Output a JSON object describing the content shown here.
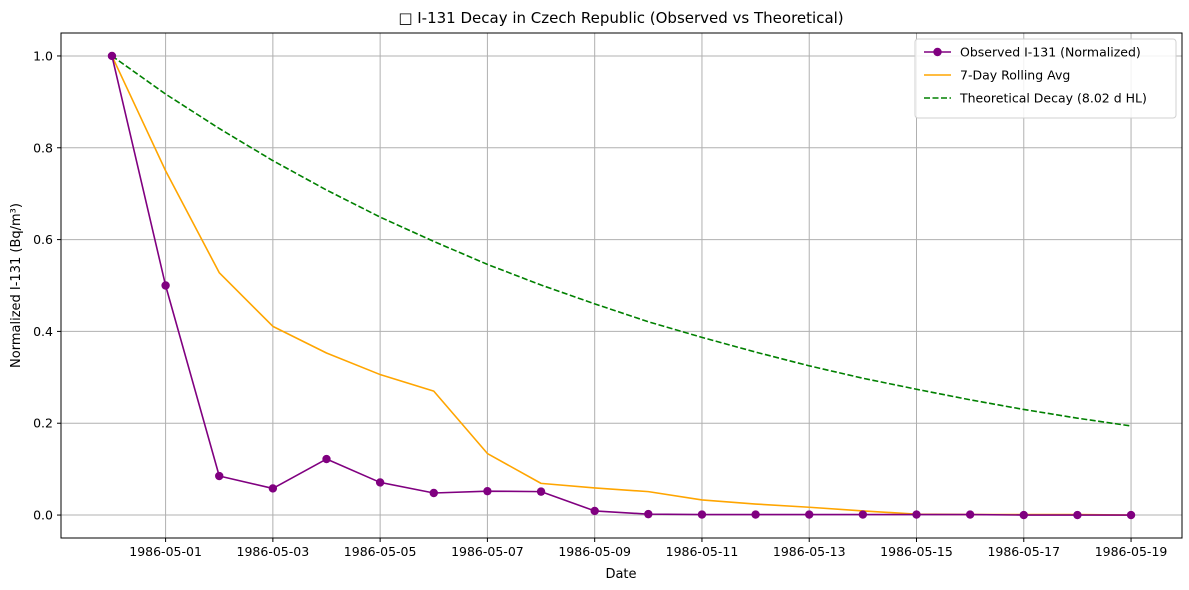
{
  "chart_data": {
    "type": "line",
    "title": "□ I-131 Decay in Czech Republic (Observed vs Theoretical)",
    "xlabel": "Date",
    "ylabel": "Normalized I-131 (Bq/m³)",
    "grid": true,
    "legend_position": "top-right",
    "xlim": [
      "1986-04-29",
      "1986-05-19"
    ],
    "ylim": [
      -0.05,
      1.05
    ],
    "x_ticks": [
      "1986-05-01",
      "1986-05-03",
      "1986-05-05",
      "1986-05-07",
      "1986-05-09",
      "1986-05-11",
      "1986-05-13",
      "1986-05-15",
      "1986-05-17",
      "1986-05-19"
    ],
    "y_ticks": [
      "0.0",
      "0.2",
      "0.4",
      "0.6",
      "0.8",
      "1.0"
    ],
    "x": [
      "1986-04-30",
      "1986-05-01",
      "1986-05-02",
      "1986-05-03",
      "1986-05-04",
      "1986-05-05",
      "1986-05-06",
      "1986-05-07",
      "1986-05-08",
      "1986-05-09",
      "1986-05-10",
      "1986-05-11",
      "1986-05-12",
      "1986-05-13",
      "1986-05-14",
      "1986-05-15",
      "1986-05-16",
      "1986-05-17",
      "1986-05-18",
      "1986-05-19"
    ],
    "series": [
      {
        "name": "Observed I-131 (Normalized)",
        "color": "#800080",
        "style": "solid-marker",
        "values": [
          1.0,
          0.5,
          0.085,
          0.058,
          0.122,
          0.071,
          0.048,
          0.052,
          0.051,
          0.009,
          0.002,
          0.001,
          0.001,
          0.001,
          0.001,
          0.001,
          0.001,
          0.0,
          0.0,
          0.0
        ]
      },
      {
        "name": "7-Day Rolling Avg",
        "color": "#ffa500",
        "style": "solid",
        "values": [
          1.0,
          0.75,
          0.528,
          0.411,
          0.353,
          0.306,
          0.27,
          0.134,
          0.069,
          0.059,
          0.051,
          0.033,
          0.024,
          0.017,
          0.009,
          0.002,
          0.001,
          0.001,
          0.001,
          0.0
        ]
      },
      {
        "name": "Theoretical Decay (8.02 d HL)",
        "color": "#008000",
        "style": "dashed",
        "values": [
          1.0,
          0.917,
          0.842,
          0.772,
          0.708,
          0.649,
          0.596,
          0.546,
          0.501,
          0.46,
          0.421,
          0.387,
          0.355,
          0.325,
          0.298,
          0.274,
          0.251,
          0.23,
          0.211,
          0.194
        ]
      }
    ]
  }
}
